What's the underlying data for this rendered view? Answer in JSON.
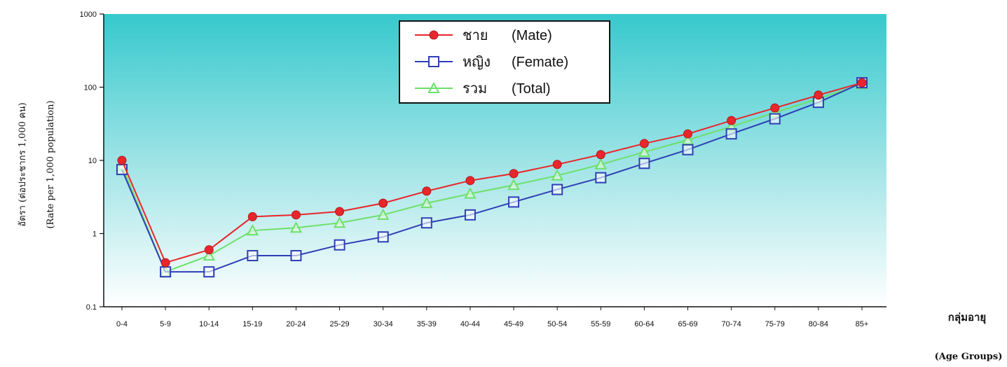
{
  "chart_data": {
    "type": "line",
    "yscale": "log",
    "ylim": [
      0.1,
      1000
    ],
    "yticks": [
      "0.1",
      "1",
      "10",
      "100",
      "1000"
    ],
    "ylabel_thai": "อัตรา (ต่อประชากร 1,000 คน)",
    "ylabel_en": "(Rate per 1,000 population)",
    "xlabel_thai": "กลุ่มอายุ",
    "xlabel_en": "(Age Groups)",
    "categories": [
      "0-4",
      "5-9",
      "10-14",
      "15-19",
      "20-24",
      "25-29",
      "30-34",
      "35-39",
      "40-44",
      "45-49",
      "50-54",
      "55-59",
      "60-64",
      "65-69",
      "70-74",
      "75-79",
      "80-84",
      "85+"
    ],
    "legend_position": "top-center",
    "series": [
      {
        "name": "ชาย",
        "name_en": "(Mate)",
        "color": "#e8262b",
        "marker": "circle",
        "values": [
          10,
          0.4,
          0.6,
          1.7,
          1.8,
          2.0,
          2.6,
          3.8,
          5.3,
          6.6,
          8.8,
          12,
          17,
          23,
          35,
          52,
          78,
          115
        ]
      },
      {
        "name": "หญิง",
        "name_en": "(Femate)",
        "color": "#2f3fb5",
        "marker": "square",
        "values": [
          7.5,
          0.3,
          0.3,
          0.5,
          0.5,
          0.7,
          0.9,
          1.4,
          1.8,
          2.7,
          4.0,
          5.8,
          9.1,
          14,
          23,
          37,
          62,
          115
        ]
      },
      {
        "name": "รวม",
        "name_en": "(Total)",
        "color": "#6ee06a",
        "marker": "triangle",
        "values": [
          8.5,
          0.3,
          0.5,
          1.1,
          1.2,
          1.4,
          1.8,
          2.6,
          3.5,
          4.6,
          6.2,
          8.8,
          13,
          19,
          29,
          45,
          70,
          110
        ]
      }
    ],
    "background_gradient": [
      "#36c9cd",
      "#ffffff"
    ]
  }
}
